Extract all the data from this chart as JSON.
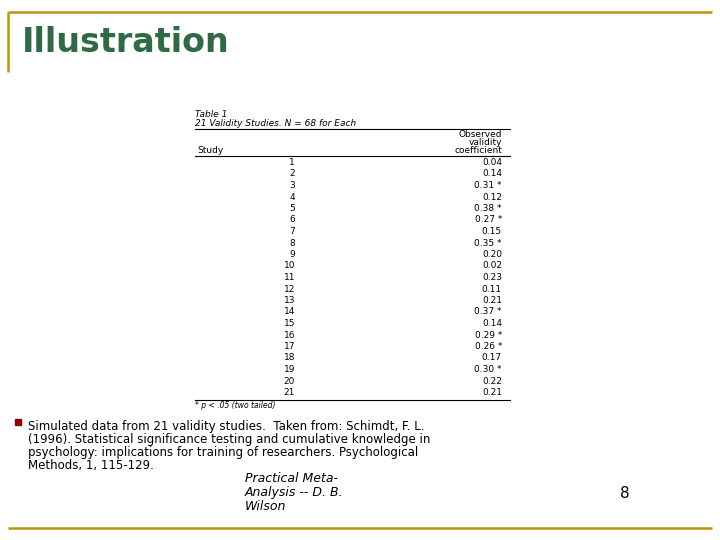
{
  "title": "Illustration",
  "title_color": "#2E6B44",
  "bg_color": "#ffffff",
  "border_color": "#B8960C",
  "table_title1": "Table 1",
  "table_title2": "21 Validity Studies. N = 68 for Each",
  "studies": [
    1,
    2,
    3,
    4,
    5,
    6,
    7,
    8,
    9,
    10,
    11,
    12,
    13,
    14,
    15,
    16,
    17,
    18,
    19,
    20,
    21
  ],
  "coefficients": [
    "0.04",
    "0.14",
    "0.31 *",
    "0.12",
    "0.38 *",
    "0.27 *",
    "0.15",
    "0.35 *",
    "0.20",
    "0.02",
    "0.23",
    "0.11",
    "0.21",
    "0.37 *",
    "0.14",
    "0.29 *",
    "0.26 *",
    "0.17",
    "0.30 *",
    "0.22",
    "0.21"
  ],
  "footnote": "* p < .05 (two tailed)",
  "bullet_text_line1": "Simulated data from 21 validity studies.  Taken from: Schimdt, F. L.",
  "bullet_text_line2": "(1996). Statistical significance testing and cumulative knowledge in",
  "bullet_text_line3": "psychology: implications for training of researchers. Psychological",
  "bullet_text_line4": "Methods, 1, 115-129.",
  "bullet_text_line3_italic": "Psychological",
  "bullet_text_line4_italic": "Methods, 1,",
  "bottom_line1": "Practical Meta-",
  "bottom_line2": "Analysis -- D. B.",
  "bottom_line3": "Wilson",
  "bottom_page": "8",
  "bullet_color": "#8B0000",
  "bottom_color": "#B8960C"
}
